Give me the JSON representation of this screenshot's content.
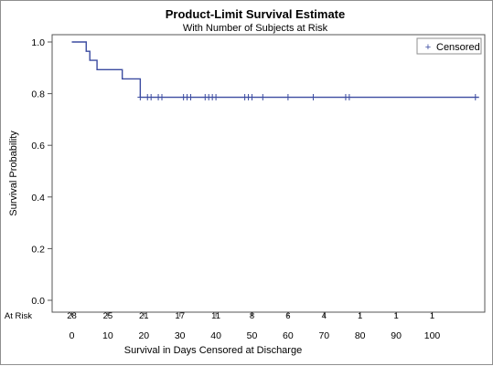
{
  "chart_data": {
    "type": "line",
    "title": "Product-Limit Survival Estimate",
    "subtitle": "With Number of Subjects at Risk",
    "xlabel": "Survival in Days Censored at Discharge",
    "ylabel": "Survival Probability",
    "xlim": [
      -5,
      113
    ],
    "ylim": [
      0,
      1.0
    ],
    "x_ticks": [
      0,
      10,
      20,
      30,
      40,
      50,
      60,
      70,
      80,
      90,
      100
    ],
    "y_ticks": [
      0.0,
      0.2,
      0.4,
      0.6,
      0.8,
      1.0
    ],
    "y_tick_labels": [
      "0.0",
      "0.2",
      "0.4",
      "0.6",
      "0.8",
      "1.0"
    ],
    "grid": false,
    "legend": {
      "position": "top-right",
      "entries": [
        {
          "symbol": "+",
          "label": "Censored"
        }
      ]
    },
    "series": [
      {
        "name": "Censored",
        "step_x": [
          0,
          4,
          5,
          7,
          14,
          19,
          113
        ],
        "step_y": [
          1.0,
          0.964,
          0.929,
          0.893,
          0.857,
          0.786,
          0.786
        ],
        "censored_x": [
          19,
          21,
          22,
          24,
          25,
          31,
          32,
          33,
          37,
          38,
          39,
          40,
          48,
          49,
          50,
          53,
          60,
          67,
          76,
          77,
          112
        ]
      }
    ],
    "at_risk": {
      "label": "At Risk",
      "times": [
        0,
        10,
        20,
        30,
        40,
        50,
        60,
        70,
        80,
        90,
        100
      ],
      "counts": [
        "28",
        "25",
        "21",
        "17",
        "11",
        "8",
        "6",
        "4",
        "1",
        "1",
        "1"
      ]
    },
    "colors": {
      "curve": "#3b4ba0",
      "axis": "#555555"
    }
  }
}
